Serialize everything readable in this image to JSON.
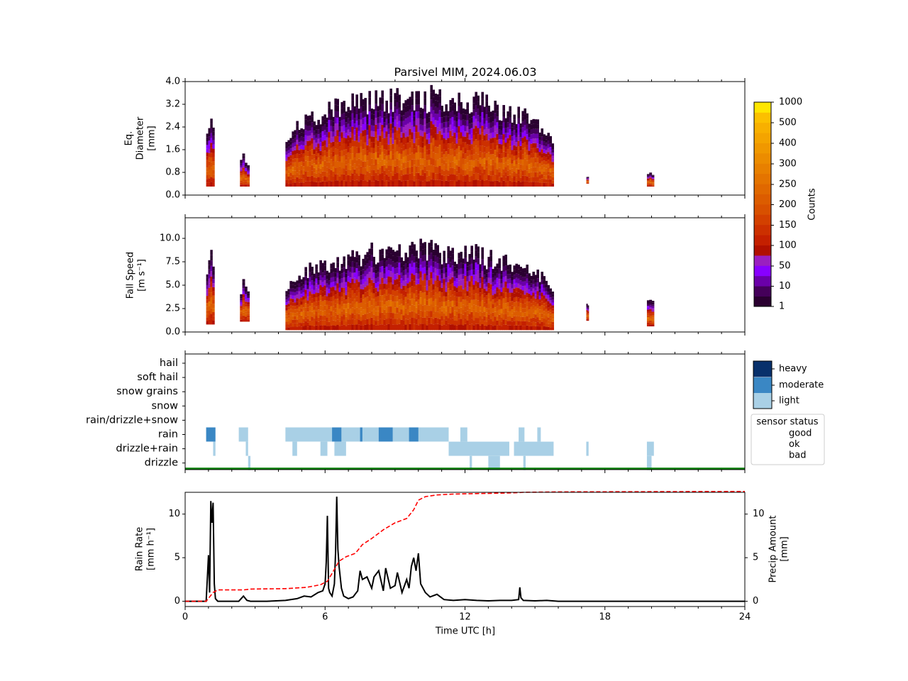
{
  "title": "Parsivel MIM, 2024.06.03",
  "colors": {
    "colorbar": [
      "#2a0030",
      "#45005a",
      "#6a00a8",
      "#8800ff",
      "#9a1fc0",
      "#b01000",
      "#c42000",
      "#cc3000",
      "#d34000",
      "#d85000",
      "#dc5c00",
      "#e06800",
      "#e47400",
      "#e88000",
      "#ec8c00",
      "#f09800",
      "#f4a400",
      "#f8b000",
      "#fcc000",
      "#ffe600"
    ],
    "intensity": {
      "light": "#a9d0e6",
      "moderate": "#3a87c4",
      "heavy": "#08306b"
    },
    "status": {
      "good": "#008000",
      "ok": "#ffff00",
      "bad": "#ff0000"
    },
    "rain_rate_line": "#000000",
    "precip_amount_line": "#ff0000"
  },
  "chart_data": [
    {
      "type": "heatmap",
      "name": "diameter",
      "ylabel": [
        "Eq.",
        "Diameter",
        "[mm]"
      ],
      "xlim": [
        0,
        24
      ],
      "ylim": [
        0,
        4.0
      ],
      "yticks": [
        "0.0",
        "0.8",
        "1.6",
        "2.4",
        "3.2",
        "4.0"
      ],
      "ytick_values": [
        0,
        0.8,
        1.6,
        2.4,
        3.2,
        4.0
      ],
      "grid": false,
      "segments": [
        [
          0.9,
          1.25,
          0.3,
          3.0
        ],
        [
          2.35,
          2.75,
          0.3,
          1.5
        ],
        [
          4.3,
          15.8,
          0.3,
          3.9
        ],
        [
          17.2,
          17.3,
          0.4,
          0.7
        ],
        [
          19.8,
          20.1,
          0.3,
          0.9
        ]
      ]
    },
    {
      "type": "heatmap",
      "name": "fall_speed",
      "ylabel": [
        "Fall Speed",
        "[m s⁻¹]"
      ],
      "xlim": [
        0,
        24
      ],
      "ylim": [
        0,
        12.2
      ],
      "yticks": [
        "0.0",
        "2.5",
        "5.0",
        "7.5",
        "10.0"
      ],
      "ytick_values": [
        0,
        2.5,
        5.0,
        7.5,
        10.0
      ],
      "grid": false,
      "segments": [
        [
          0.9,
          1.25,
          0.8,
          9.0
        ],
        [
          2.35,
          2.75,
          1.1,
          5.9
        ],
        [
          4.3,
          15.8,
          0.2,
          10.0
        ],
        [
          17.2,
          17.3,
          1.2,
          3.5
        ],
        [
          19.8,
          20.1,
          0.6,
          4.6
        ]
      ]
    },
    {
      "type": "heatmap",
      "name": "precip_type",
      "categories": [
        "hail",
        "soft hail",
        "snow grains",
        "snow",
        "rain/drizzle+snow",
        "rain",
        "drizzle+rain",
        "drizzle"
      ],
      "xlim": [
        0,
        24
      ],
      "rain_intervals": [
        [
          0.9,
          1.3,
          "moderate"
        ],
        [
          2.3,
          2.7,
          "light"
        ],
        [
          4.3,
          11.3,
          "light"
        ],
        [
          6.3,
          6.7,
          "moderate"
        ],
        [
          7.5,
          7.6,
          "moderate"
        ],
        [
          8.3,
          8.9,
          "moderate"
        ],
        [
          9.6,
          10.0,
          "moderate"
        ],
        [
          11.8,
          12.1,
          "light"
        ],
        [
          14.3,
          14.55,
          "light"
        ],
        [
          15.1,
          15.25,
          "light"
        ]
      ],
      "drizzle_rain_intervals": [
        [
          1.2,
          1.3,
          "light"
        ],
        [
          2.6,
          2.7,
          "light"
        ],
        [
          4.6,
          4.8,
          "light"
        ],
        [
          5.8,
          6.1,
          "light"
        ],
        [
          6.4,
          6.9,
          "light"
        ],
        [
          11.3,
          13.9,
          "light"
        ],
        [
          14.1,
          15.8,
          "light"
        ],
        [
          17.2,
          17.3,
          "light"
        ],
        [
          19.8,
          20.1,
          "light"
        ]
      ],
      "drizzle_intervals": [
        [
          2.7,
          2.8,
          "light"
        ],
        [
          12.2,
          12.3,
          "light"
        ],
        [
          13.0,
          13.5,
          "light"
        ],
        [
          14.5,
          14.6,
          "light"
        ],
        [
          19.8,
          20.0,
          "light"
        ]
      ],
      "intensity_legend": [
        "heavy",
        "moderate",
        "light"
      ],
      "status_legend": {
        "title": "sensor status",
        "entries": [
          "good",
          "ok",
          "bad"
        ]
      },
      "status_value": "good"
    },
    {
      "type": "line",
      "name": "rain",
      "xlabel": "Time UTC [h]",
      "ylabel": [
        "Rain Rate",
        "[mm h⁻¹]"
      ],
      "y2label": [
        "Precip Amount",
        "[mm]"
      ],
      "xlim": [
        0,
        24
      ],
      "ylim": [
        -0.6,
        12.5
      ],
      "y2lim": [
        -0.6,
        12.5
      ],
      "xticks": [
        "0",
        "6",
        "12",
        "18",
        "24"
      ],
      "xtick_values": [
        0,
        6,
        12,
        18,
        24
      ],
      "yticks": [
        "0",
        "5",
        "10"
      ],
      "ytick_values": [
        0,
        5,
        10
      ],
      "y2ticks": [
        "0",
        "5",
        "10"
      ],
      "y2tick_values": [
        0,
        5,
        10
      ],
      "series": [
        {
          "axis": "left",
          "x": [
            0,
            0.9,
            0.95,
            1.0,
            1.05,
            1.1,
            1.15,
            1.2,
            1.25,
            1.3,
            1.4,
            2.3,
            2.5,
            2.65,
            2.8,
            3.5,
            4.3,
            4.8,
            5.1,
            5.4,
            5.7,
            5.9,
            6.0,
            6.05,
            6.1,
            6.15,
            6.2,
            6.3,
            6.4,
            6.45,
            6.5,
            6.55,
            6.6,
            6.7,
            6.8,
            7.0,
            7.2,
            7.4,
            7.5,
            7.6,
            7.8,
            8.0,
            8.1,
            8.3,
            8.5,
            8.6,
            8.8,
            9.0,
            9.1,
            9.3,
            9.5,
            9.6,
            9.7,
            9.8,
            9.9,
            10.0,
            10.1,
            10.3,
            10.5,
            10.8,
            11.1,
            11.5,
            12.0,
            12.5,
            13.0,
            13.5,
            14.0,
            14.3,
            14.35,
            14.4,
            14.5,
            15.0,
            15.5,
            16.0,
            24
          ],
          "y": [
            0,
            0,
            2.5,
            5.3,
            1.0,
            11.5,
            9.0,
            11.3,
            2.0,
            0.3,
            0,
            0,
            0.6,
            0.1,
            0,
            0,
            0.1,
            0.3,
            0.6,
            0.5,
            1.0,
            1.2,
            2.0,
            4.5,
            9.8,
            1.5,
            1.0,
            0.6,
            2.0,
            5.5,
            12.0,
            6.0,
            4.0,
            1.5,
            0.6,
            0.3,
            0.5,
            1.2,
            3.5,
            2.5,
            2.8,
            1.5,
            2.8,
            3.5,
            1.2,
            3.8,
            1.5,
            1.8,
            3.3,
            1.0,
            2.5,
            1.5,
            4.0,
            5.0,
            3.5,
            5.5,
            2.0,
            1.0,
            0.5,
            0.8,
            0.2,
            0.1,
            0.2,
            0.1,
            0.05,
            0.1,
            0.1,
            0.2,
            1.6,
            0.4,
            0.1,
            0.05,
            0.1,
            0,
            0
          ],
          "style": "solid"
        },
        {
          "axis": "right",
          "x": [
            0,
            0.9,
            1.2,
            1.4,
            2.5,
            2.8,
            4.3,
            5.2,
            5.8,
            6.1,
            6.3,
            6.6,
            6.9,
            7.3,
            7.6,
            8.0,
            8.5,
            9.0,
            9.5,
            9.8,
            10.0,
            10.3,
            10.8,
            11.5,
            12.5,
            13.5,
            14.2,
            14.5,
            16.0,
            24
          ],
          "y": [
            0,
            0,
            1.0,
            1.3,
            1.3,
            1.4,
            1.45,
            1.6,
            1.9,
            2.3,
            3.2,
            4.6,
            5.1,
            5.5,
            6.5,
            7.2,
            8.2,
            9.0,
            9.5,
            10.5,
            11.6,
            12.0,
            12.2,
            12.3,
            12.35,
            12.4,
            12.45,
            12.5,
            12.55,
            12.6
          ],
          "style": "dashed"
        }
      ]
    }
  ],
  "colorbar": {
    "label": "Counts",
    "tick_labels": [
      "1",
      "10",
      "50",
      "100",
      "150",
      "200",
      "250",
      "300",
      "400",
      "500",
      "1000"
    ]
  }
}
